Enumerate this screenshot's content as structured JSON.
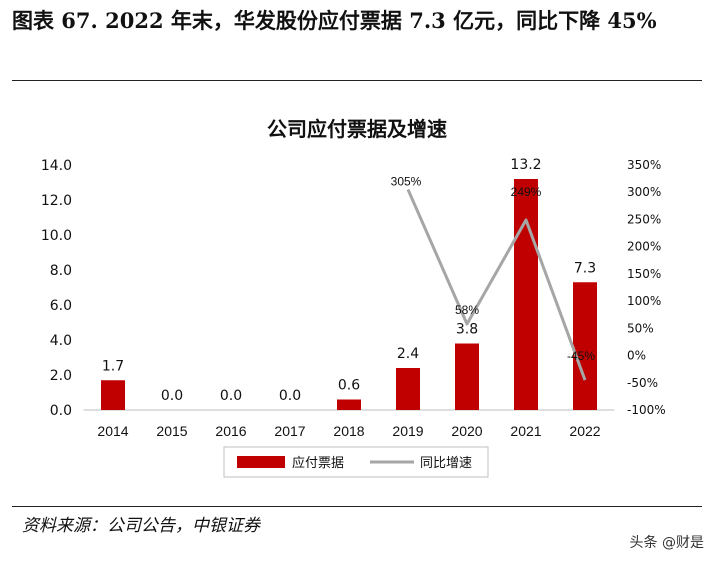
{
  "header": {
    "figure_title": "图表 67. 2022 年末，华发股份应付票据 7.3 亿元，同比下降 45%"
  },
  "footer": {
    "source": "资料来源：公司公告，中银证券",
    "watermark": "头条 @财是"
  },
  "colors": {
    "bar": "#c00000",
    "line": "#a6a6a6"
  },
  "chart_data": {
    "type": "bar",
    "title": "公司应付票据及增速",
    "categories": [
      "2014",
      "2015",
      "2016",
      "2017",
      "2018",
      "2019",
      "2020",
      "2021",
      "2022"
    ],
    "series": [
      {
        "name": "应付票据",
        "type": "bar",
        "axis": "left",
        "values": [
          1.7,
          0.0,
          0.0,
          0.0,
          0.6,
          2.4,
          3.8,
          13.2,
          7.3
        ],
        "labels": [
          "1.7",
          "0.0",
          "0.0",
          "0.0",
          "0.6",
          "2.4",
          "3.8",
          "13.2",
          "7.3"
        ]
      },
      {
        "name": "同比增速",
        "type": "line",
        "axis": "right",
        "values": [
          null,
          null,
          null,
          null,
          null,
          305,
          58,
          249,
          -45
        ],
        "labels": [
          "",
          "",
          "",
          "",
          "",
          "305%",
          "58%",
          "249%",
          "-45%"
        ]
      }
    ],
    "y_left": {
      "min": 0,
      "max": 14,
      "ticks": [
        "0.0",
        "2.0",
        "4.0",
        "6.0",
        "8.0",
        "10.0",
        "12.0",
        "14.0"
      ]
    },
    "y_right": {
      "min": -100,
      "max": 350,
      "ticks": [
        "-100%",
        "-50%",
        "0%",
        "50%",
        "100%",
        "150%",
        "200%",
        "250%",
        "300%",
        "350%"
      ]
    },
    "legend_position": "bottom",
    "grid": false
  }
}
